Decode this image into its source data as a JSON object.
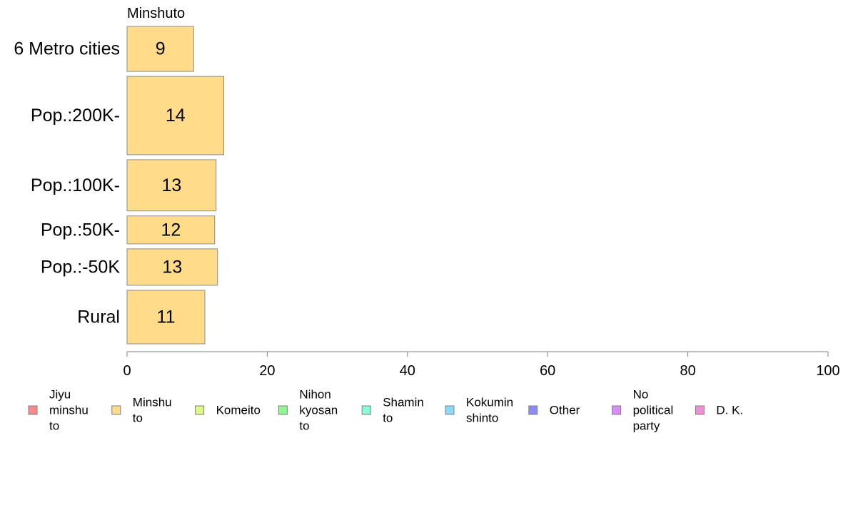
{
  "chart_data": {
    "type": "bar",
    "orientation": "horizontal",
    "panel_title": "Minshuto",
    "categories": [
      "6 Metro cities",
      "Pop.:200K-",
      "Pop.:100K-",
      "Pop.:50K-",
      "Pop.:-50K",
      "Rural"
    ],
    "values": [
      9.5,
      13.8,
      12.7,
      12.5,
      12.9,
      11.1
    ],
    "value_labels": [
      "9",
      "14",
      "13",
      "12",
      "13",
      "11"
    ],
    "relative_widths": [
      0.058,
      0.101,
      0.066,
      0.036,
      0.047,
      0.069
    ],
    "bar_color": "#FFDB8A",
    "bar_border_color": "#8c8c8c",
    "xlim": [
      0,
      100
    ],
    "xticks": [
      "0",
      "20",
      "40",
      "60",
      "80",
      "100"
    ],
    "grid": false,
    "legend": {
      "placement": "bottom",
      "items": [
        {
          "lines": [
            "Jiyu",
            "minshu",
            "to"
          ],
          "color": "#F8898F"
        },
        {
          "lines": [
            "Minshu",
            "to"
          ],
          "color": "#FFDB8A"
        },
        {
          "lines": [
            "Komeito"
          ],
          "color": "#DDFA88"
        },
        {
          "lines": [
            "Nihon",
            "kyosan",
            "to"
          ],
          "color": "#8DFA8F"
        },
        {
          "lines": [
            "Shamin",
            "to"
          ],
          "color": "#8BFAD8"
        },
        {
          "lines": [
            "Kokumin",
            "shinto"
          ],
          "color": "#8DD9F8"
        },
        {
          "lines": [
            "Other"
          ],
          "color": "#8B8BF6"
        },
        {
          "lines": [
            "No",
            "political",
            "party"
          ],
          "color": "#DA8CF8"
        },
        {
          "lines": [
            "D. K."
          ],
          "color": "#F78CD9"
        }
      ]
    }
  }
}
